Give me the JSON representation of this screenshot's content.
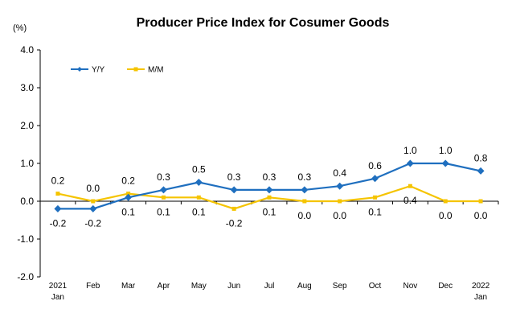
{
  "chart_data": {
    "type": "line",
    "title": "Producer Price Index for Cosumer Goods",
    "ylabel": "(%)",
    "xlabel": "",
    "ylim": [
      -2.0,
      4.0
    ],
    "yticks": [
      "4.0",
      "3.0",
      "2.0",
      "1.0",
      "0.0",
      "-1.0",
      "-2.0"
    ],
    "categories": [
      {
        "label": "2021",
        "sublabel": "Jan"
      },
      {
        "label": "Feb",
        "sublabel": ""
      },
      {
        "label": "Mar",
        "sublabel": ""
      },
      {
        "label": "Apr",
        "sublabel": ""
      },
      {
        "label": "May",
        "sublabel": ""
      },
      {
        "label": "Jun",
        "sublabel": ""
      },
      {
        "label": "Jul",
        "sublabel": ""
      },
      {
        "label": "Aug",
        "sublabel": ""
      },
      {
        "label": "Sep",
        "sublabel": ""
      },
      {
        "label": "Oct",
        "sublabel": ""
      },
      {
        "label": "Nov",
        "sublabel": ""
      },
      {
        "label": "Dec",
        "sublabel": ""
      },
      {
        "label": "2022",
        "sublabel": "Jan"
      }
    ],
    "series": [
      {
        "name": "Y/Y",
        "color": "#1f6fbf",
        "marker": "diamond",
        "values": [
          -0.2,
          -0.2,
          0.1,
          0.3,
          0.5,
          0.3,
          0.3,
          0.3,
          0.4,
          0.6,
          1.0,
          1.0,
          0.8
        ],
        "labels": [
          "-0.2",
          "-0.2",
          "0.1",
          "0.3",
          "0.5",
          "0.3",
          "0.3",
          "0.3",
          "0.4",
          "0.6",
          "1.0",
          "1.0",
          "0.8"
        ]
      },
      {
        "name": "M/M",
        "color": "#f5c400",
        "marker": "square",
        "values": [
          0.2,
          0.0,
          0.2,
          0.1,
          0.1,
          -0.2,
          0.1,
          0.0,
          0.0,
          0.1,
          0.4,
          0.0,
          0.0
        ],
        "labels": [
          "0.2",
          "0.0",
          "0.2",
          "0.1",
          "0.1",
          "-0.2",
          "0.1",
          "0.0",
          "0.0",
          "0.1",
          "0.4",
          "0.0",
          "0.0"
        ]
      }
    ],
    "legend_position": "top-left",
    "grid": false
  }
}
